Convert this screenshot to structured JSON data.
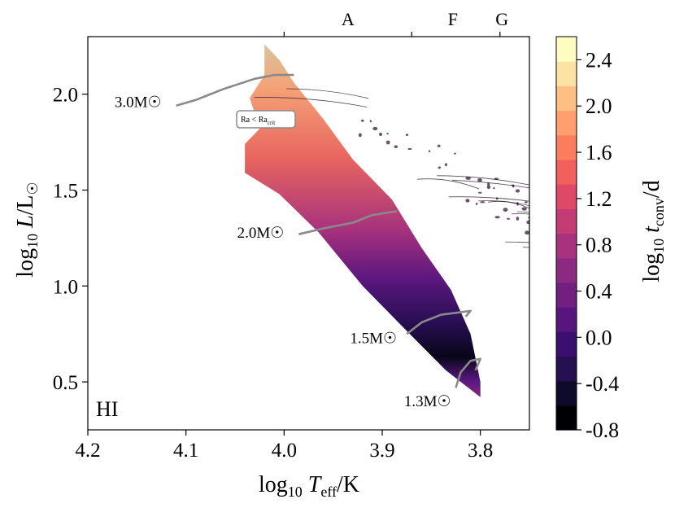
{
  "chart_data": {
    "type": "heatmap",
    "panel_label": "HI",
    "xlabel": "log10 Teff/K",
    "ylabel": "log10 L/L☉",
    "colorbar_label": "log10 t_conv/d",
    "xlim": [
      4.2,
      3.75
    ],
    "ylim": [
      0.25,
      2.3
    ],
    "x_ticks": [
      4.2,
      4.1,
      4.0,
      3.9,
      3.8
    ],
    "x_tick_labels": [
      "4.2",
      "4.1",
      "4.0",
      "3.9",
      "3.8"
    ],
    "y_ticks": [
      0.5,
      1.0,
      1.5,
      2.0
    ],
    "y_tick_labels": [
      "0.5",
      "1.0",
      "1.5",
      "2.0"
    ],
    "colorbar_range": [
      -0.8,
      2.6
    ],
    "colorbar_ticks": [
      2.4,
      2.0,
      1.6,
      1.2,
      0.8,
      0.4,
      0.0,
      -0.4,
      -0.8
    ],
    "colorbar_tick_labels": [
      "2.4",
      "2.0",
      "1.6",
      "1.2",
      "0.8",
      "0.4",
      "0.0",
      "-0.4",
      "-0.8"
    ],
    "colormap": [
      "#000004",
      "#0d0a2b",
      "#231151",
      "#3b0f70",
      "#57157e",
      "#721f81",
      "#8c2981",
      "#a8327d",
      "#c43c75",
      "#de4968",
      "#f1605d",
      "#fa7e5e",
      "#fe9f6d",
      "#febf84",
      "#fde3a3",
      "#fcfdbf"
    ],
    "spectral_types": [
      {
        "label": "A",
        "teff_label_pos": 3.935
      },
      {
        "label": "F",
        "teff_label_pos": 3.828
      },
      {
        "label": "G",
        "teff_label_pos": 3.778
      }
    ],
    "spectral_boundaries": [
      4.0,
      3.87,
      3.78
    ],
    "tracks": [
      {
        "mass_label": "3.0",
        "points": [
          [
            4.11,
            1.94
          ],
          [
            4.09,
            1.97
          ],
          [
            4.06,
            2.03
          ],
          [
            4.03,
            2.08
          ],
          [
            4.01,
            2.1
          ],
          [
            3.99,
            2.1
          ]
        ]
      },
      {
        "mass_label": "2.0",
        "points": [
          [
            3.985,
            1.27
          ],
          [
            3.96,
            1.3
          ],
          [
            3.93,
            1.33
          ],
          [
            3.91,
            1.37
          ],
          [
            3.885,
            1.39
          ]
        ]
      },
      {
        "mass_label": "1.5",
        "points": [
          [
            3.875,
            0.75
          ],
          [
            3.86,
            0.81
          ],
          [
            3.84,
            0.85
          ],
          [
            3.81,
            0.87
          ],
          [
            3.815,
            0.84
          ]
        ]
      },
      {
        "mass_label": "1.3",
        "points": [
          [
            3.825,
            0.47
          ],
          [
            3.82,
            0.55
          ],
          [
            3.81,
            0.61
          ],
          [
            3.8,
            0.62
          ],
          [
            3.805,
            0.56
          ]
        ]
      }
    ],
    "domain_polygon": [
      [
        4.02,
        2.26
      ],
      [
        4.005,
        2.18
      ],
      [
        3.99,
        2.06
      ],
      [
        3.96,
        1.87
      ],
      [
        3.93,
        1.66
      ],
      [
        3.89,
        1.45
      ],
      [
        3.86,
        1.2
      ],
      [
        3.83,
        0.98
      ],
      [
        3.81,
        0.75
      ],
      [
        3.8,
        0.5
      ],
      [
        3.8,
        0.42
      ],
      [
        3.835,
        0.56
      ],
      [
        3.87,
        0.74
      ],
      [
        3.92,
        1.0
      ],
      [
        3.965,
        1.28
      ],
      [
        4.005,
        1.48
      ],
      [
        4.04,
        1.59
      ],
      [
        4.04,
        1.74
      ],
      [
        4.025,
        1.82
      ],
      [
        4.035,
        1.98
      ],
      [
        4.02,
        2.1
      ]
    ],
    "color_field_samples": [
      {
        "log_l": 2.15,
        "value": 2.1
      },
      {
        "log_l": 1.9,
        "value": 1.9
      },
      {
        "log_l": 1.6,
        "value": 1.6
      },
      {
        "log_l": 1.4,
        "value": 1.3
      },
      {
        "log_l": 1.2,
        "value": 0.8
      },
      {
        "log_l": 1.0,
        "value": 0.2
      },
      {
        "log_l": 0.8,
        "value": -0.4
      },
      {
        "log_l": 0.6,
        "value": -0.7
      },
      {
        "log_l": 0.45,
        "value": 0.3
      }
    ],
    "annotation_badge": {
      "text_main": "Ra < Ra",
      "text_sub": "crit"
    },
    "mass_unit_symbol": "M☉"
  }
}
